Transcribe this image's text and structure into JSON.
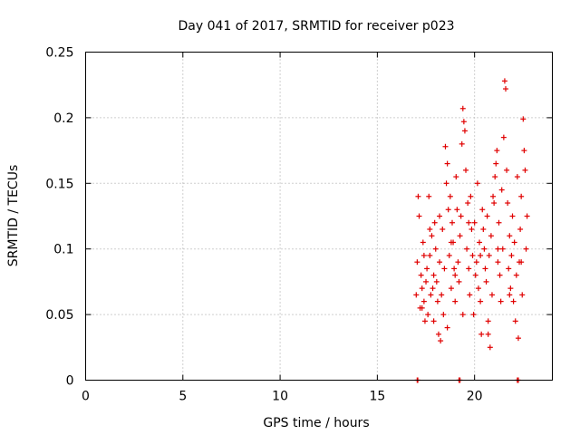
{
  "chart_data": {
    "type": "scatter",
    "title": "Day 041 of 2017, SRMTID for receiver p023",
    "xlabel": "GPS time / hours",
    "ylabel": "SRMTID / TECUs",
    "xlim": [
      0,
      24
    ],
    "ylim": [
      0,
      0.25
    ],
    "xticks": [
      0,
      5,
      10,
      15,
      20
    ],
    "xtick_labels": [
      "0",
      "5",
      "10",
      "15",
      "20"
    ],
    "yticks": [
      0,
      0.05,
      0.1,
      0.15,
      0.2,
      0.25
    ],
    "ytick_labels": [
      "0",
      "0.05",
      "0.1",
      "0.15",
      "0.2",
      "0.25"
    ],
    "grid": true,
    "marker": "plus",
    "color": "#e00000",
    "series": [
      {
        "name": "SRMTID",
        "points": [
          [
            17.05,
            0.0
          ],
          [
            17.08,
            0.0
          ],
          [
            19.2,
            0.0
          ],
          [
            19.25,
            0.0
          ],
          [
            22.2,
            0.0
          ],
          [
            22.25,
            0.0
          ],
          [
            17.0,
            0.065
          ],
          [
            17.05,
            0.09
          ],
          [
            17.1,
            0.14
          ],
          [
            17.15,
            0.125
          ],
          [
            17.2,
            0.055
          ],
          [
            17.25,
            0.08
          ],
          [
            17.3,
            0.07
          ],
          [
            17.35,
            0.105
          ],
          [
            17.4,
            0.06
          ],
          [
            17.45,
            0.045
          ],
          [
            17.5,
            0.075
          ],
          [
            17.55,
            0.085
          ],
          [
            17.6,
            0.05
          ],
          [
            17.65,
            0.14
          ],
          [
            17.7,
            0.095
          ],
          [
            17.75,
            0.065
          ],
          [
            17.8,
            0.11
          ],
          [
            17.85,
            0.07
          ],
          [
            17.9,
            0.08
          ],
          [
            17.95,
            0.12
          ],
          [
            18.0,
            0.1
          ],
          [
            18.05,
            0.075
          ],
          [
            18.1,
            0.06
          ],
          [
            18.15,
            0.035
          ],
          [
            18.2,
            0.09
          ],
          [
            18.25,
            0.03
          ],
          [
            18.3,
            0.065
          ],
          [
            18.35,
            0.115
          ],
          [
            18.4,
            0.05
          ],
          [
            18.45,
            0.085
          ],
          [
            18.5,
            0.178
          ],
          [
            18.55,
            0.15
          ],
          [
            18.6,
            0.165
          ],
          [
            18.65,
            0.13
          ],
          [
            18.7,
            0.095
          ],
          [
            18.75,
            0.14
          ],
          [
            18.8,
            0.07
          ],
          [
            18.85,
            0.12
          ],
          [
            18.9,
            0.105
          ],
          [
            18.95,
            0.085
          ],
          [
            19.0,
            0.06
          ],
          [
            19.05,
            0.155
          ],
          [
            19.1,
            0.13
          ],
          [
            19.15,
            0.09
          ],
          [
            19.2,
            0.075
          ],
          [
            19.25,
            0.11
          ],
          [
            19.3,
            0.125
          ],
          [
            19.35,
            0.18
          ],
          [
            19.4,
            0.207
          ],
          [
            19.45,
            0.197
          ],
          [
            19.5,
            0.19
          ],
          [
            19.55,
            0.16
          ],
          [
            19.6,
            0.1
          ],
          [
            19.65,
            0.135
          ],
          [
            19.7,
            0.085
          ],
          [
            19.75,
            0.065
          ],
          [
            19.8,
            0.14
          ],
          [
            19.85,
            0.115
          ],
          [
            19.9,
            0.095
          ],
          [
            19.95,
            0.05
          ],
          [
            20.0,
            0.12
          ],
          [
            20.05,
            0.08
          ],
          [
            20.1,
            0.09
          ],
          [
            20.15,
            0.15
          ],
          [
            20.2,
            0.07
          ],
          [
            20.25,
            0.105
          ],
          [
            20.3,
            0.06
          ],
          [
            20.35,
            0.035
          ],
          [
            20.4,
            0.13
          ],
          [
            20.45,
            0.115
          ],
          [
            20.5,
            0.1
          ],
          [
            20.55,
            0.085
          ],
          [
            20.6,
            0.075
          ],
          [
            20.65,
            0.125
          ],
          [
            20.7,
            0.045
          ],
          [
            20.75,
            0.095
          ],
          [
            20.8,
            0.025
          ],
          [
            20.85,
            0.11
          ],
          [
            20.9,
            0.065
          ],
          [
            20.95,
            0.14
          ],
          [
            21.0,
            0.135
          ],
          [
            21.05,
            0.155
          ],
          [
            21.1,
            0.165
          ],
          [
            21.15,
            0.175
          ],
          [
            21.2,
            0.09
          ],
          [
            21.25,
            0.12
          ],
          [
            21.3,
            0.08
          ],
          [
            21.35,
            0.06
          ],
          [
            21.4,
            0.145
          ],
          [
            21.45,
            0.1
          ],
          [
            21.5,
            0.185
          ],
          [
            21.55,
            0.228
          ],
          [
            21.6,
            0.222
          ],
          [
            21.65,
            0.16
          ],
          [
            21.7,
            0.135
          ],
          [
            21.75,
            0.085
          ],
          [
            21.8,
            0.11
          ],
          [
            21.85,
            0.07
          ],
          [
            21.9,
            0.095
          ],
          [
            21.95,
            0.125
          ],
          [
            22.0,
            0.06
          ],
          [
            22.05,
            0.105
          ],
          [
            22.1,
            0.045
          ],
          [
            22.15,
            0.08
          ],
          [
            22.2,
            0.155
          ],
          [
            22.25,
            0.032
          ],
          [
            22.3,
            0.09
          ],
          [
            22.35,
            0.115
          ],
          [
            22.4,
            0.14
          ],
          [
            22.45,
            0.065
          ],
          [
            22.5,
            0.199
          ],
          [
            22.55,
            0.175
          ],
          [
            22.6,
            0.16
          ],
          [
            22.65,
            0.1
          ],
          [
            22.7,
            0.125
          ],
          [
            17.3,
            0.055
          ],
          [
            17.9,
            0.045
          ],
          [
            18.6,
            0.04
          ],
          [
            19.4,
            0.05
          ],
          [
            20.7,
            0.035
          ],
          [
            17.7,
            0.115
          ],
          [
            18.2,
            0.125
          ],
          [
            18.8,
            0.105
          ],
          [
            19.7,
            0.12
          ],
          [
            20.3,
            0.095
          ],
          [
            21.2,
            0.1
          ],
          [
            21.8,
            0.065
          ],
          [
            22.4,
            0.09
          ],
          [
            17.4,
            0.095
          ],
          [
            19.0,
            0.08
          ]
        ]
      }
    ]
  }
}
